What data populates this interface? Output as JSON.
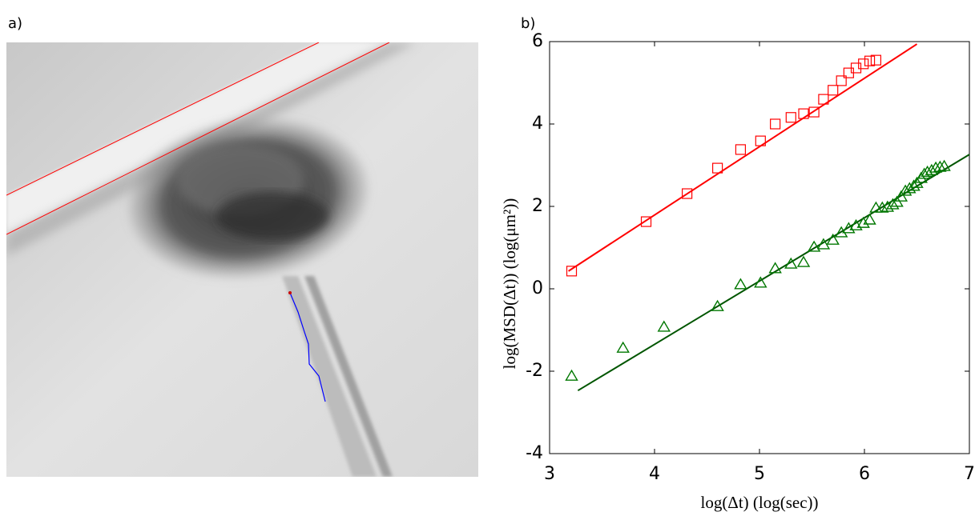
{
  "panel_labels": [
    "a)",
    "b)"
  ],
  "chart_data": {
    "type": "scatter",
    "xlabel": "log(Δt)  (log(sec))",
    "ylabel": "log(MSD(Δt))  (log(μm²))",
    "xlim": [
      3,
      7
    ],
    "ylim": [
      -4,
      6
    ],
    "xticks": [
      3,
      4,
      5,
      6,
      7
    ],
    "yticks": [
      -4,
      -2,
      0,
      2,
      4,
      6
    ],
    "series": [
      {
        "color": "#ff0000",
        "marker": "square",
        "x": [
          3.21,
          3.92,
          4.31,
          4.6,
          4.82,
          5.01,
          5.15,
          5.3,
          5.42,
          5.52,
          5.61,
          5.7,
          5.78,
          5.85,
          5.92,
          5.99,
          6.05,
          6.11
        ],
        "values": [
          0.43,
          1.63,
          2.31,
          2.93,
          3.38,
          3.59,
          4.0,
          4.16,
          4.25,
          4.29,
          4.6,
          4.82,
          5.05,
          5.24,
          5.36,
          5.46,
          5.53,
          5.55
        ]
      },
      {
        "color": "#007700",
        "marker": "triangle",
        "x": [
          3.21,
          3.7,
          4.09,
          4.6,
          4.82,
          5.01,
          5.15,
          5.3,
          5.42,
          5.52,
          5.61,
          5.7,
          5.78,
          5.85,
          5.92,
          5.99,
          6.05,
          6.11,
          6.17,
          6.22,
          6.27,
          6.31,
          6.35,
          6.39,
          6.43,
          6.47,
          6.5,
          6.54,
          6.57,
          6.6,
          6.64,
          6.68,
          6.72,
          6.76
        ],
        "values": [
          -2.12,
          -1.44,
          -0.93,
          -0.43,
          0.1,
          0.14,
          0.49,
          0.6,
          0.64,
          1.01,
          1.07,
          1.18,
          1.36,
          1.46,
          1.53,
          1.59,
          1.67,
          1.96,
          1.96,
          1.98,
          2.04,
          2.1,
          2.23,
          2.37,
          2.43,
          2.49,
          2.56,
          2.68,
          2.78,
          2.83,
          2.87,
          2.93,
          2.95,
          2.97
        ]
      }
    ],
    "lines": [
      {
        "color": "#ff0000",
        "x": [
          3.18,
          6.5
        ],
        "values": [
          0.43,
          5.94
        ]
      },
      {
        "color": "#005500",
        "x": [
          3.27,
          7.0
        ],
        "values": [
          -2.47,
          3.26
        ]
      }
    ]
  }
}
